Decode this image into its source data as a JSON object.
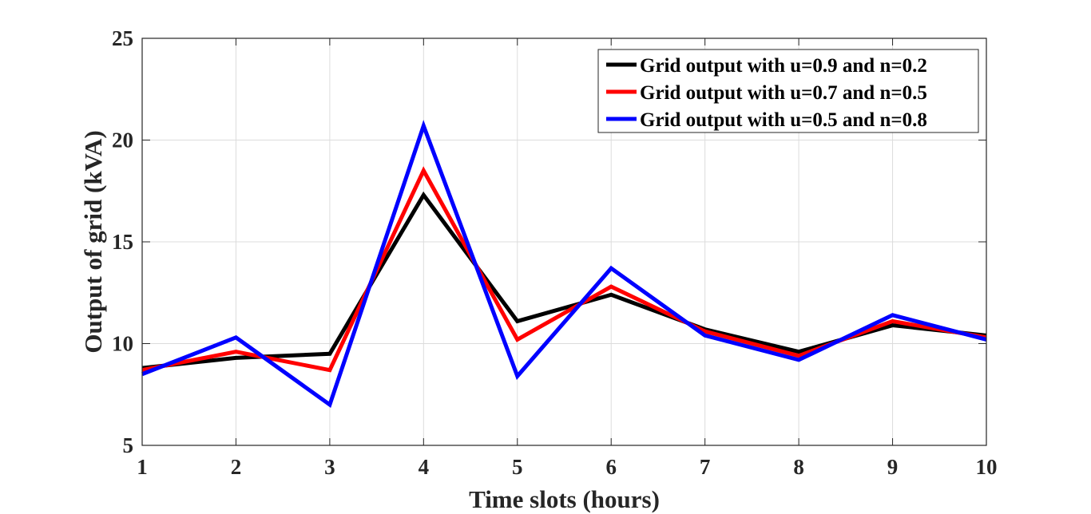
{
  "chart_data": {
    "type": "line",
    "title": "",
    "xlabel": "Time slots (hours)",
    "ylabel": "Output of grid (kVA)",
    "x": [
      1,
      2,
      3,
      4,
      5,
      6,
      7,
      8,
      9,
      10
    ],
    "xlim": [
      1,
      10
    ],
    "ylim": [
      5,
      25
    ],
    "xticks": [
      "1",
      "2",
      "3",
      "4",
      "5",
      "6",
      "7",
      "8",
      "9",
      "10"
    ],
    "yticks": [
      "5",
      "10",
      "15",
      "20",
      "25"
    ],
    "grid": true,
    "legend_position": "top-right",
    "series": [
      {
        "name": "Grid output with u=0.9 and n=0.2",
        "color": "#000000",
        "values": [
          8.8,
          9.3,
          9.5,
          17.3,
          11.1,
          12.4,
          10.7,
          9.6,
          10.9,
          10.4
        ]
      },
      {
        "name": "Grid output with u=0.7 and n=0.5",
        "color": "#ff0000",
        "values": [
          8.7,
          9.6,
          8.7,
          18.5,
          10.2,
          12.8,
          10.6,
          9.4,
          11.1,
          10.3
        ]
      },
      {
        "name": "Grid output with u=0.5 and n=0.8",
        "color": "#0000ff",
        "values": [
          8.5,
          10.3,
          7.0,
          20.7,
          8.4,
          13.7,
          10.4,
          9.2,
          11.4,
          10.2
        ]
      }
    ]
  }
}
